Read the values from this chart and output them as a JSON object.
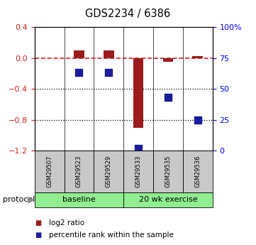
{
  "title": "GDS2234 / 6386",
  "samples": [
    "GSM29507",
    "GSM29523",
    "GSM29529",
    "GSM29533",
    "GSM29535",
    "GSM29536"
  ],
  "log2_ratio": [
    null,
    0.1,
    0.1,
    -0.9,
    -0.05,
    0.02
  ],
  "percentile_rank": [
    null,
    63,
    63,
    2,
    43,
    25
  ],
  "ylim_left": [
    -1.2,
    0.4
  ],
  "ylim_right": [
    0,
    100
  ],
  "left_yticks": [
    -1.2,
    -0.8,
    -0.4,
    0.0,
    0.4
  ],
  "right_yticks": [
    0,
    25,
    50,
    75,
    100
  ],
  "dotted_lines": [
    -0.4,
    -0.8
  ],
  "bar_color": "#9B1C1C",
  "dot_color": "#1C1C9B",
  "dashed_line_color": "#CC2222",
  "protocol_labels": [
    "baseline",
    "20 wk exercise"
  ],
  "protocol_label": "protocol",
  "legend_log2": "log2 ratio",
  "legend_pct": "percentile rank within the sample",
  "bar_width": 0.35,
  "dot_size": 55,
  "green_light": "#90EE90",
  "grey_sample": "#C8C8C8"
}
